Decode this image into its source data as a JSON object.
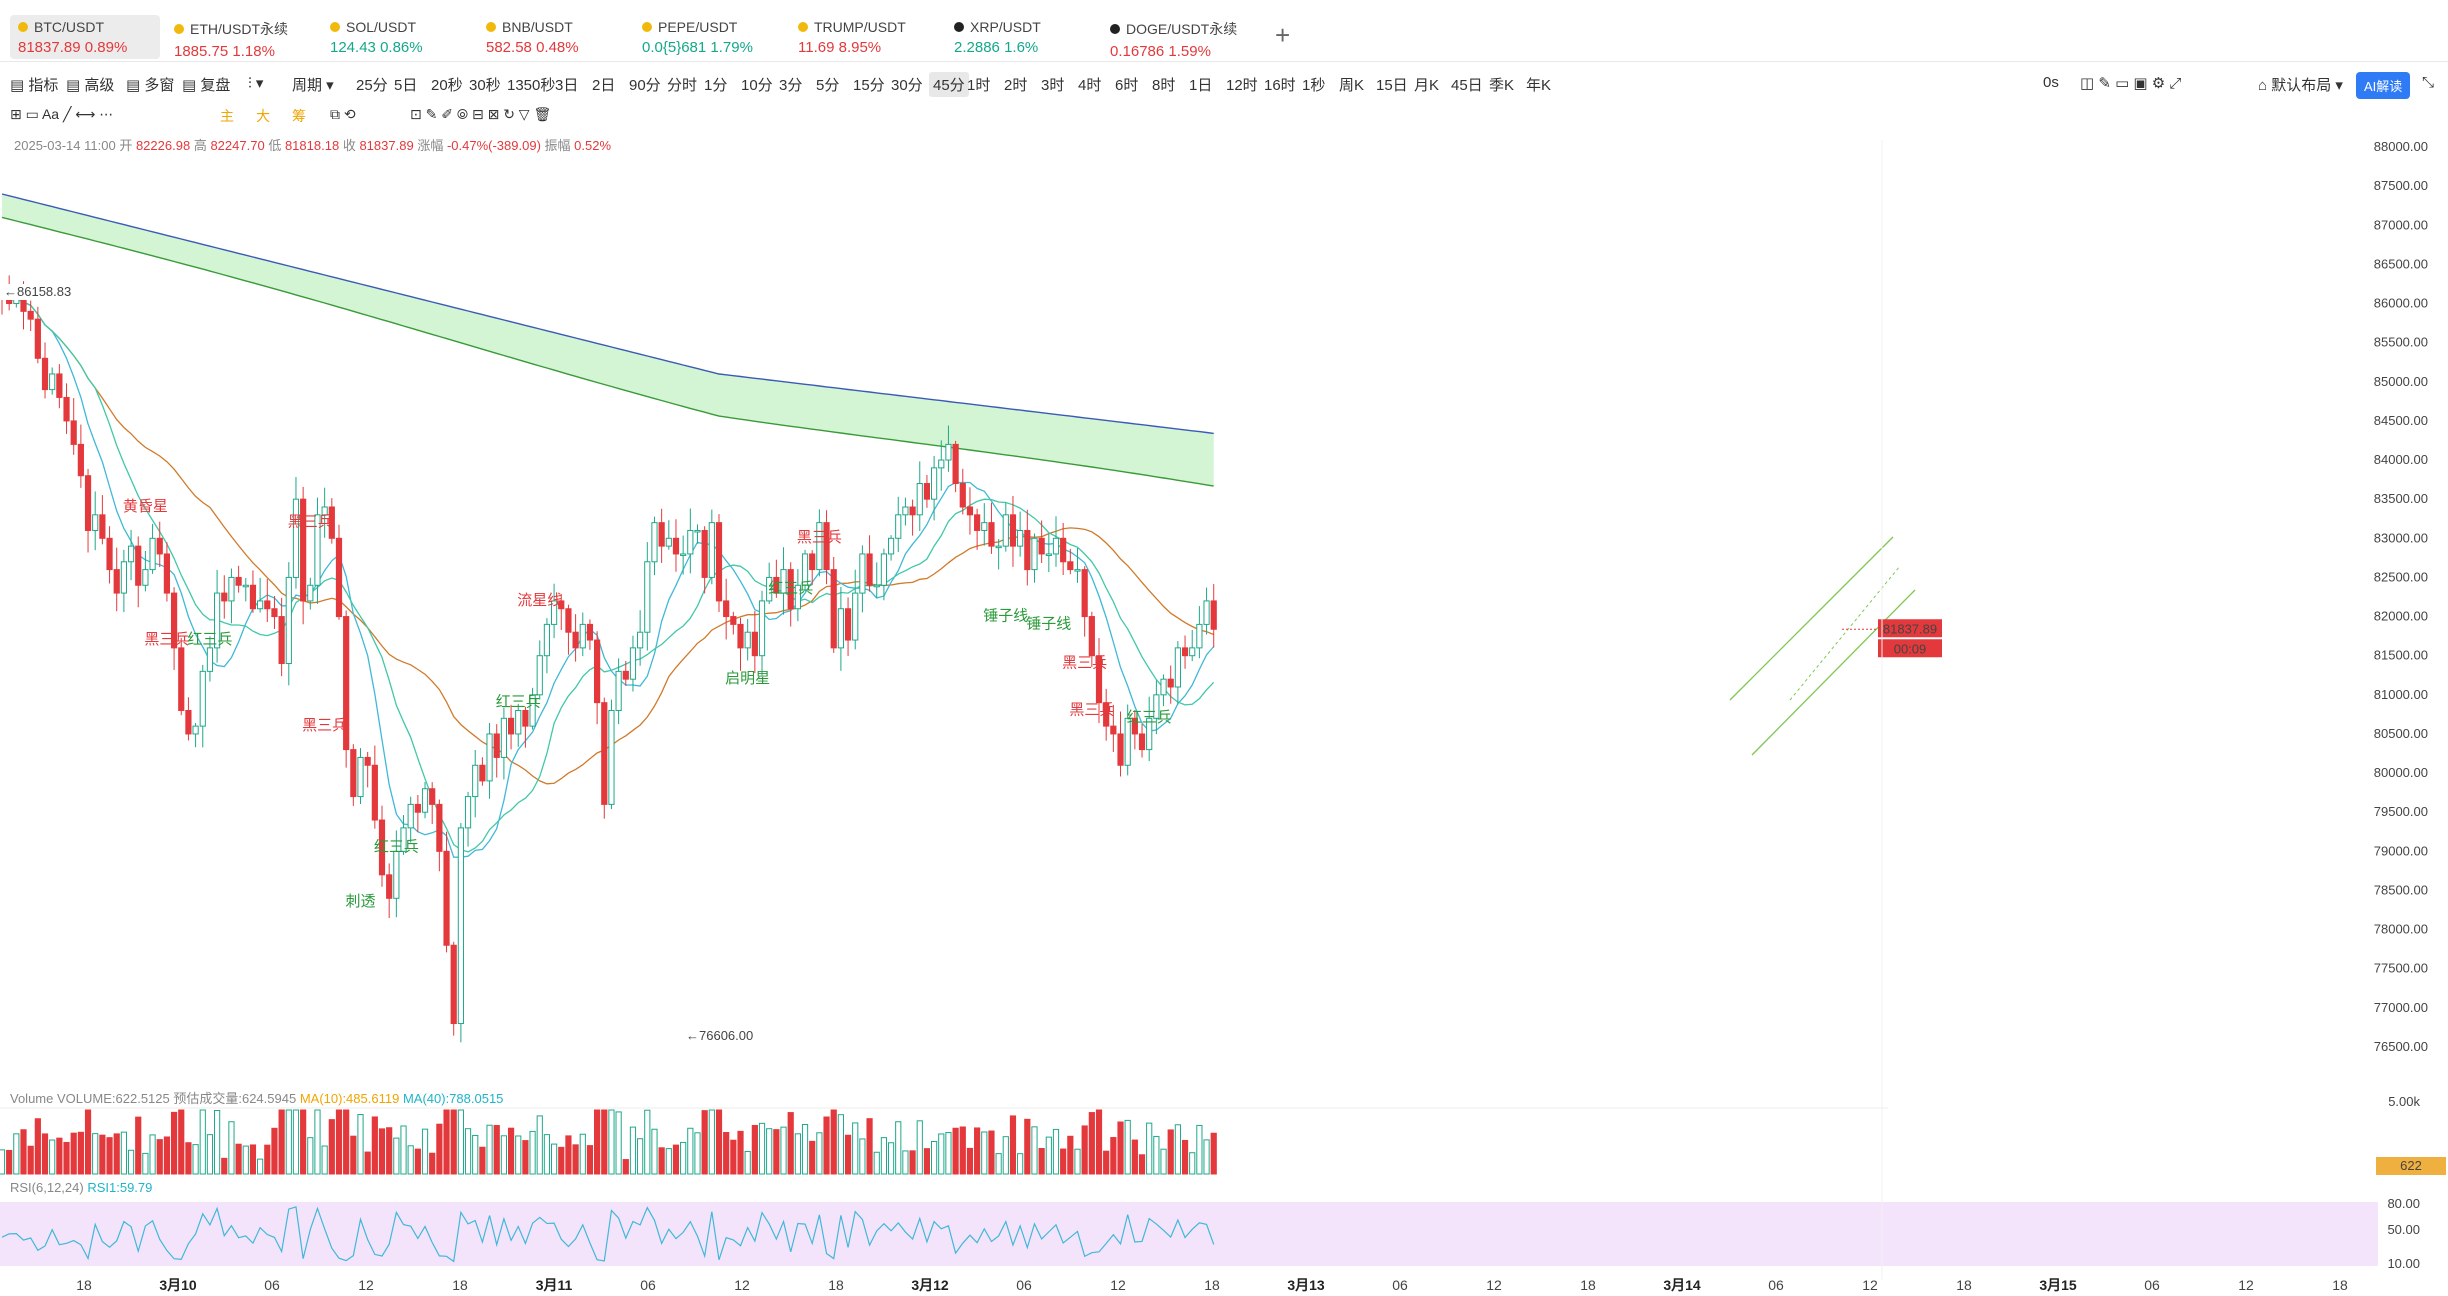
{
  "tabs": [
    {
      "symbol": "BTC/USDT",
      "price": "81837.89",
      "change": "0.89%",
      "dir": "dn",
      "color": "#f0b90b",
      "active": true
    },
    {
      "symbol": "ETH/USDT永续",
      "price": "1885.75",
      "change": "1.18%",
      "dir": "dn",
      "color": "#f0b90b"
    },
    {
      "symbol": "SOL/USDT",
      "price": "124.43",
      "change": "0.86%",
      "dir": "up",
      "color": "#f0b90b"
    },
    {
      "symbol": "BNB/USDT",
      "price": "582.58",
      "change": "0.48%",
      "dir": "dn",
      "color": "#f0b90b"
    },
    {
      "symbol": "PEPE/USDT",
      "price": "0.0{5}681",
      "change": "1.79%",
      "dir": "up",
      "color": "#f0b90b"
    },
    {
      "symbol": "TRUMP/USDT",
      "price": "11.69",
      "change": "8.95%",
      "dir": "dn",
      "color": "#f0b90b"
    },
    {
      "symbol": "XRP/USDT",
      "price": "2.2886",
      "change": "1.6%",
      "dir": "up",
      "color": "#222"
    },
    {
      "symbol": "DOGE/USDT永续",
      "price": "0.16786",
      "change": "1.59%",
      "dir": "dn",
      "color": "#222"
    }
  ],
  "toolbar": {
    "left": [
      "指标",
      "高级",
      "多窗",
      "复盘"
    ],
    "period_label": "周期",
    "intervals": [
      "25分",
      "5日",
      "20秒",
      "30秒",
      "1350秒",
      "3日",
      "2日",
      "90分",
      "分时",
      "1分",
      "10分",
      "3分",
      "5分",
      "15分",
      "30分",
      "45分",
      "1时",
      "2时",
      "3时",
      "4时",
      "6时",
      "8时",
      "1日",
      "12时",
      "16时",
      "1秒",
      "周K",
      "15日",
      "月K",
      "45日",
      "季K",
      "年K"
    ],
    "selected_interval": "45分",
    "latency": "0s",
    "layout_label": "默认布局",
    "ai_label": "AI解读"
  },
  "draw_tools": {
    "labels": [
      "主",
      "大",
      "筹"
    ]
  },
  "ohlc": {
    "time": "2025-03-14 11:00",
    "open_label": "开",
    "open": "82226.98",
    "high_label": "高",
    "high": "82247.70",
    "low_label": "低",
    "low": "81818.18",
    "close_label": "收",
    "close": "81837.89",
    "chg_label": "涨幅",
    "chg": "-0.47%(-389.09)",
    "amp_label": "振幅",
    "amp": "0.52%"
  },
  "volume_legend": {
    "title": "Volume",
    "vol": "VOLUME:622.5125",
    "est": "预估成交量:624.5945",
    "ma10": "MA(10):485.6119",
    "ma40": "MA(40):788.0515"
  },
  "rsi_legend": {
    "title": "RSI(6,12,24)",
    "rsi1": "RSI1:59.79"
  },
  "chart_data": {
    "type": "candlestick",
    "interval": "45分",
    "y_axis": {
      "min": 76500,
      "max": 88000,
      "ticks": [
        88000,
        87500,
        87000,
        86500,
        86000,
        85500,
        85000,
        84500,
        84000,
        83500,
        83000,
        82500,
        82000,
        81500,
        81000,
        80500,
        80000,
        79500,
        79000,
        78500,
        78000,
        77500,
        77000,
        76500
      ]
    },
    "price_tick_labels": [
      "88000.00",
      "87500.00",
      "87000.00",
      "86500.00",
      "86000.00",
      "85500.00",
      "85000.00",
      "84500.00",
      "84000.00",
      "83500.00",
      "83000.00",
      "82500.00",
      "82000.00",
      "81500.00",
      "81000.00",
      "80500.00",
      "80000.00",
      "79500.00",
      "79000.00",
      "78500.00",
      "78000.00",
      "77500.00",
      "77000.00",
      "76500.00"
    ],
    "last_price": "81837.89",
    "countdown": "00:09",
    "high_mark": "86158.83",
    "low_mark": "76606.00",
    "x_ticks": [
      "18",
      "3月10",
      "06",
      "12",
      "18",
      "3月11",
      "06",
      "12",
      "18",
      "3月12",
      "06",
      "12",
      "18",
      "3月13",
      "06",
      "12",
      "18",
      "3月14",
      "06",
      "12",
      "18",
      "3月15",
      "06",
      "12",
      "18"
    ],
    "bold_ticks": [
      "3月10",
      "3月11",
      "3月12",
      "3月13",
      "3月14",
      "3月15"
    ],
    "closes": [
      86080,
      86000,
      86100,
      85900,
      85800,
      85300,
      84900,
      85100,
      84800,
      84500,
      84200,
      83800,
      83100,
      83300,
      83000,
      82600,
      82300,
      82700,
      82900,
      82400,
      82600,
      83000,
      82800,
      82300,
      81600,
      80800,
      80500,
      80600,
      81300,
      81600,
      82300,
      82200,
      82500,
      82400,
      82400,
      82100,
      82200,
      82100,
      82000,
      81400,
      82500,
      83500,
      82200,
      82400,
      83300,
      83400,
      83000,
      82000,
      80300,
      79700,
      80200,
      80100,
      79400,
      78700,
      78400,
      79000,
      79300,
      79600,
      79500,
      79800,
      79600,
      79000,
      77800,
      76800,
      79300,
      79700,
      80100,
      79900,
      80500,
      80200,
      80700,
      80500,
      80800,
      80600,
      81000,
      81500,
      81900,
      82200,
      82100,
      81800,
      81600,
      81900,
      81700,
      80900,
      79600,
      80800,
      81300,
      81200,
      81600,
      81800,
      82700,
      83200,
      82900,
      83000,
      82800,
      82800,
      83100,
      83100,
      82500,
      83200,
      82200,
      82000,
      81900,
      81600,
      81800,
      81500,
      82200,
      82500,
      82300,
      82600,
      82100,
      82400,
      82800,
      82600,
      83200,
      82600,
      81600,
      82100,
      81700,
      82300,
      82800,
      82400,
      82400,
      82800,
      83000,
      83300,
      83400,
      83300,
      83700,
      83500,
      83900,
      84000,
      84200,
      83700,
      83400,
      83300,
      83100,
      83200,
      82900,
      82900,
      83300,
      82900,
      83100,
      82600,
      83000,
      82800,
      82800,
      83000,
      82700,
      82600,
      82600,
      82000,
      81500,
      80900,
      80600,
      80500,
      80100,
      80700,
      80500,
      80300,
      80700,
      81000,
      81200,
      81100,
      81600,
      81500,
      81600,
      81900,
      82200,
      81837.89
    ],
    "volume_axis": {
      "tick": "5.00k",
      "current": "622"
    },
    "rsi_axis": {
      "ticks": [
        "80.00",
        "50.00",
        "10.00"
      ],
      "value": 59.79
    },
    "patterns": [
      {
        "text": "黄昏星",
        "i": 20,
        "p": 83350,
        "c": "red"
      },
      {
        "text": "黑三兵",
        "i": 23,
        "p": 81650,
        "c": "red"
      },
      {
        "text": "红三兵",
        "i": 29,
        "p": 81650,
        "c": "green"
      },
      {
        "text": "黑三兵",
        "i": 43,
        "p": 83150,
        "c": "red"
      },
      {
        "text": "黑三兵",
        "i": 45,
        "p": 80550,
        "c": "red"
      },
      {
        "text": "刺透",
        "i": 50,
        "p": 78300,
        "c": "green"
      },
      {
        "text": "红三兵",
        "i": 55,
        "p": 79000,
        "c": "green"
      },
      {
        "text": "流星线",
        "i": 75,
        "p": 82150,
        "c": "red"
      },
      {
        "text": "红三兵",
        "i": 72,
        "p": 80850,
        "c": "green"
      },
      {
        "text": "启明星",
        "i": 104,
        "p": 81150,
        "c": "green"
      },
      {
        "text": "红三兵",
        "i": 110,
        "p": 82300,
        "c": "green"
      },
      {
        "text": "黑三兵",
        "i": 114,
        "p": 82950,
        "c": "red"
      },
      {
        "text": "锤子线",
        "i": 140,
        "p": 81950,
        "c": "green"
      },
      {
        "text": "锤子线",
        "i": 146,
        "p": 81850,
        "c": "green"
      },
      {
        "text": "黑三兵",
        "i": 151,
        "p": 81350,
        "c": "red"
      },
      {
        "text": "黑三兵",
        "i": 152,
        "p": 80750,
        "c": "red"
      },
      {
        "text": "红三兵",
        "i": 160,
        "p": 80650,
        "c": "green"
      }
    ]
  }
}
